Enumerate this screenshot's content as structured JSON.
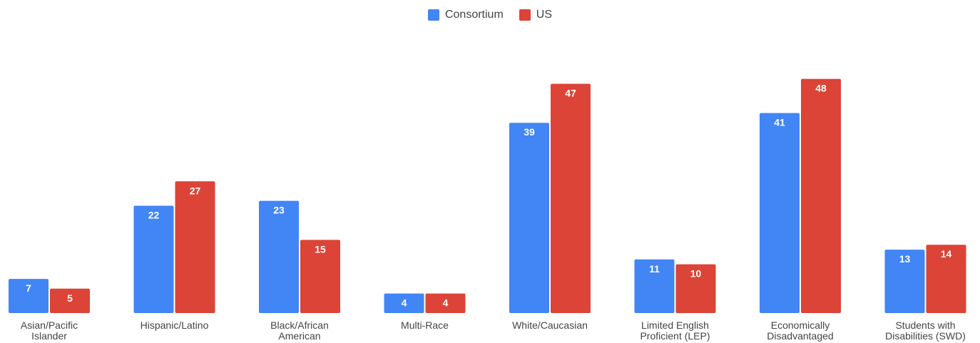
{
  "chart_data": {
    "type": "bar",
    "categories": [
      "Asian/Pacific Islander",
      "Hispanic/Latino",
      "Black/African American",
      "Multi-Race",
      "White/Caucasian",
      "Limited English Proficient (LEP)",
      "Economically Disadvantaged",
      "Students with Disabilities (SWD)"
    ],
    "category_label_lines": [
      [
        "Asian/Pacific",
        "Islander"
      ],
      [
        "Hispanic/Latino"
      ],
      [
        "Black/African",
        "American"
      ],
      [
        "Multi-Race"
      ],
      [
        "White/Caucasian"
      ],
      [
        "Limited English",
        "Proficient (LEP)"
      ],
      [
        "Economically",
        "Disadvantaged"
      ],
      [
        "Students with",
        "Disabilities (SWD)"
      ]
    ],
    "series": [
      {
        "name": "Consortium",
        "color": "#4285F4",
        "values": [
          7,
          22,
          23,
          4,
          39,
          11,
          41,
          13
        ]
      },
      {
        "name": "US",
        "color": "#DB4437",
        "values": [
          5,
          27,
          15,
          4,
          47,
          10,
          48,
          14
        ]
      }
    ],
    "title": "",
    "xlabel": "",
    "ylabel": "",
    "ylim": [
      0,
      50
    ],
    "grid": false,
    "legend_position": "top-center",
    "data_labels": true
  }
}
